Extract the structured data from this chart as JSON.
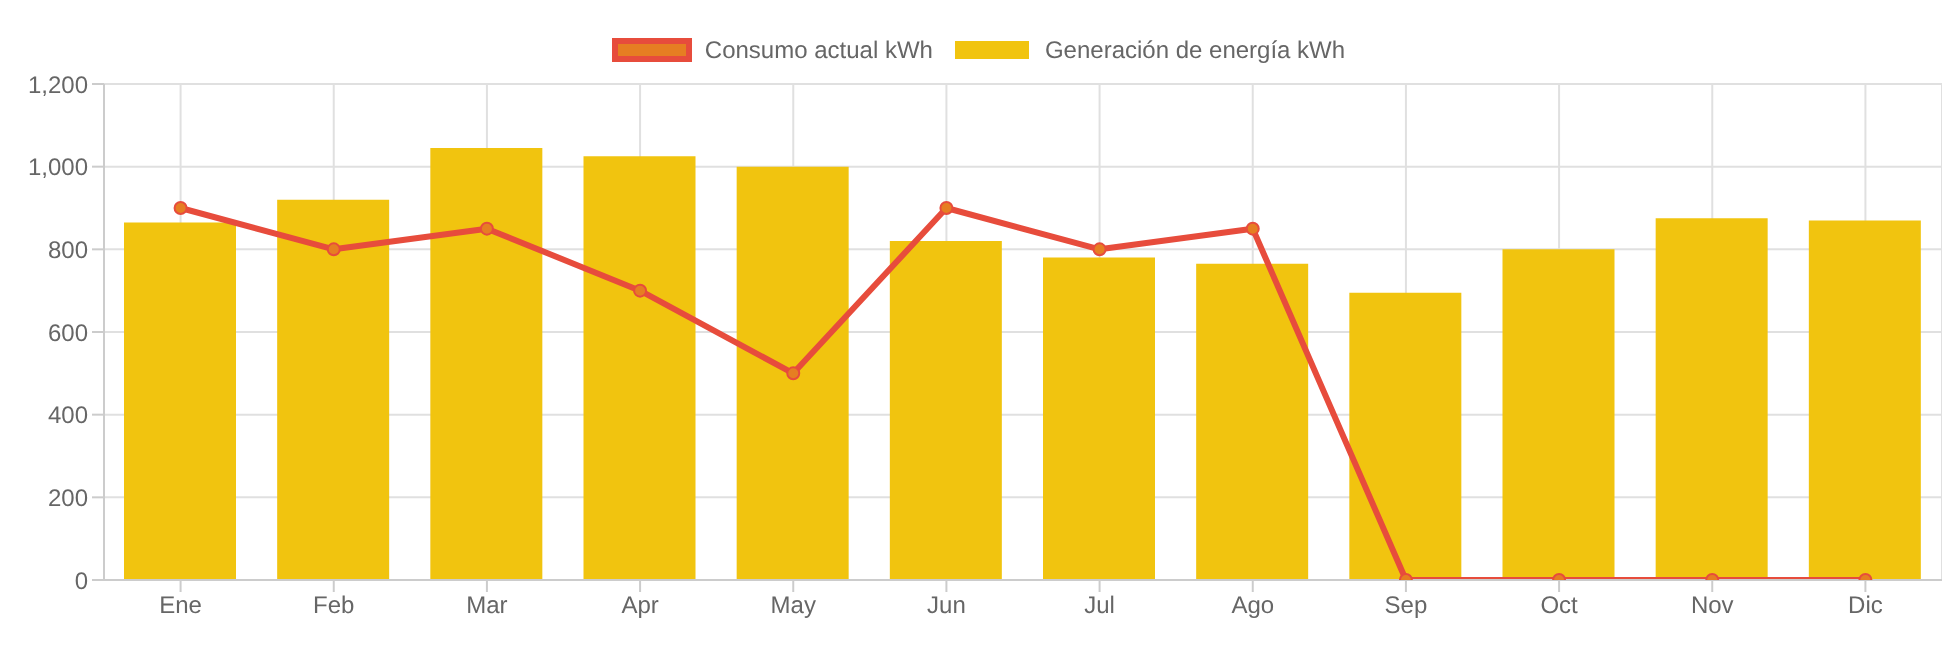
{
  "chart_data": {
    "type": "bar",
    "categories": [
      "Ene",
      "Feb",
      "Mar",
      "Apr",
      "May",
      "Jun",
      "Jul",
      "Ago",
      "Sep",
      "Oct",
      "Nov",
      "Dic"
    ],
    "series": [
      {
        "name": "Consumo actual kWh",
        "type": "line",
        "color": "#e74c3c",
        "values": [
          900,
          800,
          850,
          700,
          500,
          900,
          800,
          850,
          0,
          0,
          0,
          0
        ]
      },
      {
        "name": "Generación de energía kWh",
        "color": "#f1c40f",
        "values": [
          865,
          920,
          1045,
          1025,
          1000,
          820,
          780,
          765,
          695,
          800,
          875,
          870
        ]
      }
    ],
    "ylim": [
      0,
      1200
    ],
    "yticks": [
      0,
      200,
      400,
      600,
      800,
      {
        "value": 1000,
        "label": "1,000"
      },
      {
        "value": 1200,
        "label": "1,200"
      }
    ],
    "grid": true,
    "legend": "top",
    "marker": "circle"
  }
}
